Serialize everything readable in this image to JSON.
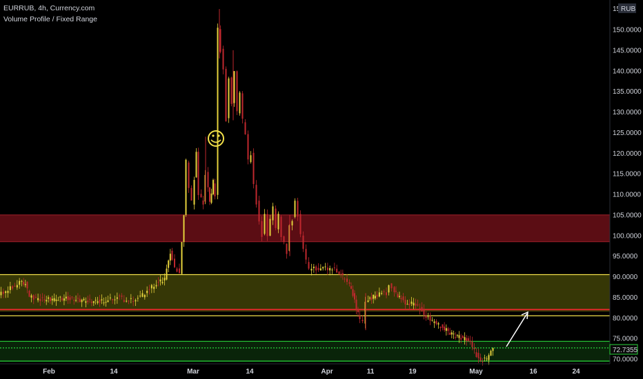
{
  "header": {
    "symbol_line": "EURRUB, 4h, Currency.com",
    "indicator": "Volume Profile / Fixed Range"
  },
  "price_axis": {
    "currency_badge": "RUB",
    "top_label": "15",
    "ticks": [
      "150.0000",
      "145.0000",
      "140.0000",
      "135.0000",
      "130.0000",
      "125.0000",
      "120.0000",
      "115.0000",
      "110.0000",
      "105.0000",
      "100.0000",
      "95.0000",
      "90.0000",
      "85.0000",
      "80.0000",
      "75.0000",
      "70.0000"
    ],
    "last_price": "72.7355"
  },
  "time_axis": {
    "labels": [
      "Feb",
      "14",
      "Mar",
      "14",
      "Apr",
      "11",
      "19",
      "May",
      "16",
      "24"
    ]
  },
  "annotations": {
    "smiley": "☺"
  },
  "colors": {
    "background": "#000000",
    "candle_up": "#e6d23c",
    "candle_down": "#c0282e",
    "zone_red": "#6b0f17",
    "zone_olive": "#3f4107",
    "zone_green": "#0a2a0a",
    "line_yellow": "#f3e14a",
    "line_red": "#e0282a",
    "line_green": "#29d33a",
    "text": "#d1d4dc"
  },
  "chart_data": {
    "type": "candlestick",
    "timeframe": "4h",
    "ylim": [
      69,
      156
    ],
    "yticks": [
      70,
      75,
      80,
      85,
      90,
      95,
      100,
      105,
      110,
      115,
      120,
      125,
      130,
      135,
      140,
      145,
      150
    ],
    "x_labels": [
      "Feb",
      "14",
      "Mar",
      "14",
      "Apr",
      "11",
      "19",
      "May",
      "16",
      "24"
    ],
    "zones": [
      {
        "from": 98.5,
        "to": 105,
        "color": "red"
      },
      {
        "from": 81.5,
        "to": 90.5,
        "color": "olive"
      },
      {
        "from": 69.3,
        "to": 74.3,
        "color": "green"
      }
    ],
    "hlines": [
      {
        "y": 90.5,
        "color": "yellow"
      },
      {
        "y": 82.0,
        "color": "red"
      },
      {
        "y": 80.5,
        "color": "yellow"
      },
      {
        "y": 74.3,
        "color": "green"
      },
      {
        "y": 72.7,
        "color": "green",
        "style": "dotted"
      },
      {
        "y": 69.5,
        "color": "green"
      }
    ],
    "price_path": [
      [
        0,
        85.5
      ],
      [
        10,
        86.5
      ],
      [
        20,
        87.5
      ],
      [
        30,
        88.5
      ],
      [
        38,
        88.3
      ],
      [
        44,
        85.2
      ],
      [
        60,
        84.5
      ],
      [
        80,
        84.5
      ],
      [
        100,
        84.8
      ],
      [
        120,
        84.2
      ],
      [
        140,
        84
      ],
      [
        155,
        84
      ],
      [
        165,
        84.8
      ],
      [
        175,
        85
      ],
      [
        185,
        84
      ],
      [
        195,
        84.5
      ],
      [
        205,
        85
      ],
      [
        215,
        86.5
      ],
      [
        225,
        88
      ],
      [
        240,
        89.5
      ],
      [
        248,
        96
      ],
      [
        255,
        92
      ],
      [
        262,
        91
      ],
      [
        268,
        105
      ],
      [
        272,
        118
      ],
      [
        276,
        112
      ],
      [
        280,
        108
      ],
      [
        286,
        120
      ],
      [
        290,
        110
      ],
      [
        296,
        108
      ],
      [
        300,
        115
      ],
      [
        305,
        108
      ],
      [
        310,
        113
      ],
      [
        314,
        110
      ],
      [
        318,
        150
      ],
      [
        322,
        145
      ],
      [
        326,
        140
      ],
      [
        330,
        128
      ],
      [
        334,
        138
      ],
      [
        338,
        132
      ],
      [
        342,
        140
      ],
      [
        346,
        130
      ],
      [
        350,
        135
      ],
      [
        354,
        128
      ],
      [
        358,
        125
      ],
      [
        362,
        118
      ],
      [
        366,
        120
      ],
      [
        370,
        112
      ],
      [
        374,
        108
      ],
      [
        378,
        103
      ],
      [
        382,
        100
      ],
      [
        386,
        105
      ],
      [
        390,
        100
      ],
      [
        394,
        104
      ],
      [
        398,
        107
      ],
      [
        402,
        102
      ],
      [
        406,
        105
      ],
      [
        410,
        100
      ],
      [
        414,
        98
      ],
      [
        418,
        96
      ],
      [
        422,
        102
      ],
      [
        426,
        104
      ],
      [
        430,
        108
      ],
      [
        434,
        105
      ],
      [
        438,
        100
      ],
      [
        442,
        97
      ],
      [
        446,
        94
      ],
      [
        450,
        92
      ],
      [
        460,
        92
      ],
      [
        470,
        92
      ],
      [
        480,
        92
      ],
      [
        490,
        91.5
      ],
      [
        498,
        90
      ],
      [
        505,
        89
      ],
      [
        510,
        87
      ],
      [
        515,
        84
      ],
      [
        520,
        81
      ],
      [
        524,
        80
      ],
      [
        528,
        79
      ],
      [
        532,
        84
      ],
      [
        537,
        84.5
      ],
      [
        545,
        85.5
      ],
      [
        555,
        86
      ],
      [
        562,
        86
      ],
      [
        566,
        88
      ],
      [
        570,
        87
      ],
      [
        575,
        86
      ],
      [
        580,
        85
      ],
      [
        586,
        84.5
      ],
      [
        592,
        83
      ],
      [
        598,
        83.5
      ],
      [
        604,
        83
      ],
      [
        610,
        82.5
      ],
      [
        616,
        81
      ],
      [
        622,
        80
      ],
      [
        628,
        79
      ],
      [
        634,
        78.5
      ],
      [
        640,
        78
      ],
      [
        648,
        77
      ],
      [
        656,
        76
      ],
      [
        664,
        75.5
      ],
      [
        672,
        75
      ],
      [
        680,
        74.5
      ],
      [
        686,
        73
      ],
      [
        692,
        71
      ],
      [
        698,
        69.8
      ],
      [
        704,
        70
      ],
      [
        710,
        70.5
      ],
      [
        716,
        72.7
      ]
    ],
    "spikes": [
      {
        "x": 318,
        "high": 155,
        "low": 143
      },
      {
        "x": 338,
        "high": 145,
        "low": 128
      },
      {
        "x": 298,
        "high": 124,
        "low": 108
      },
      {
        "x": 530,
        "high": 86,
        "low": 77
      },
      {
        "x": 420,
        "high": 105,
        "low": 95
      }
    ],
    "last": 72.7355
  }
}
